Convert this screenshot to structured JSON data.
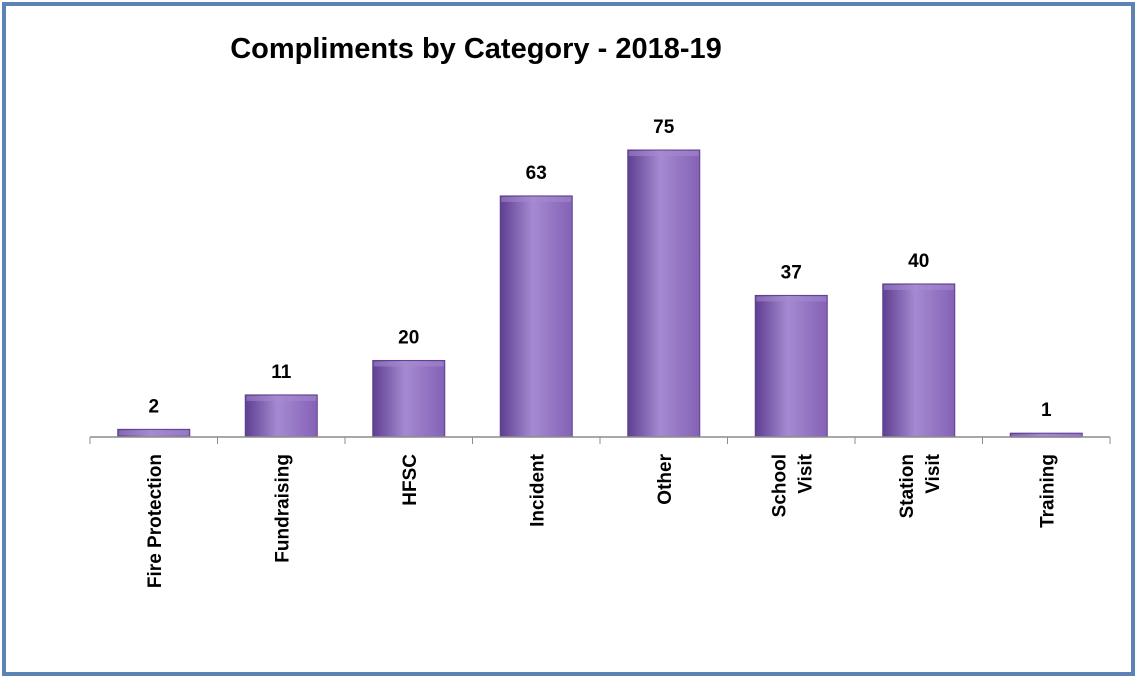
{
  "chart_data": {
    "type": "bar",
    "title": "Compliments by Category - 2018-19",
    "xlabel": "",
    "ylabel": "",
    "categories": [
      [
        "Fire Protection"
      ],
      [
        "Fundraising"
      ],
      [
        "HFSC"
      ],
      [
        "Incident"
      ],
      [
        "Other"
      ],
      [
        "School",
        "Visit"
      ],
      [
        "Station",
        "Visit"
      ],
      [
        "Training"
      ]
    ],
    "values": [
      2,
      11,
      20,
      63,
      75,
      37,
      40,
      1
    ],
    "ylim": [
      0,
      75
    ],
    "grid": false,
    "legend": "none",
    "colors": {
      "bar_fill": "#8461b6",
      "bar_light": "#a58ad0",
      "bar_dark": "#5e3f91",
      "axis": "#8c8c8c",
      "border": "#5b83b5"
    }
  }
}
